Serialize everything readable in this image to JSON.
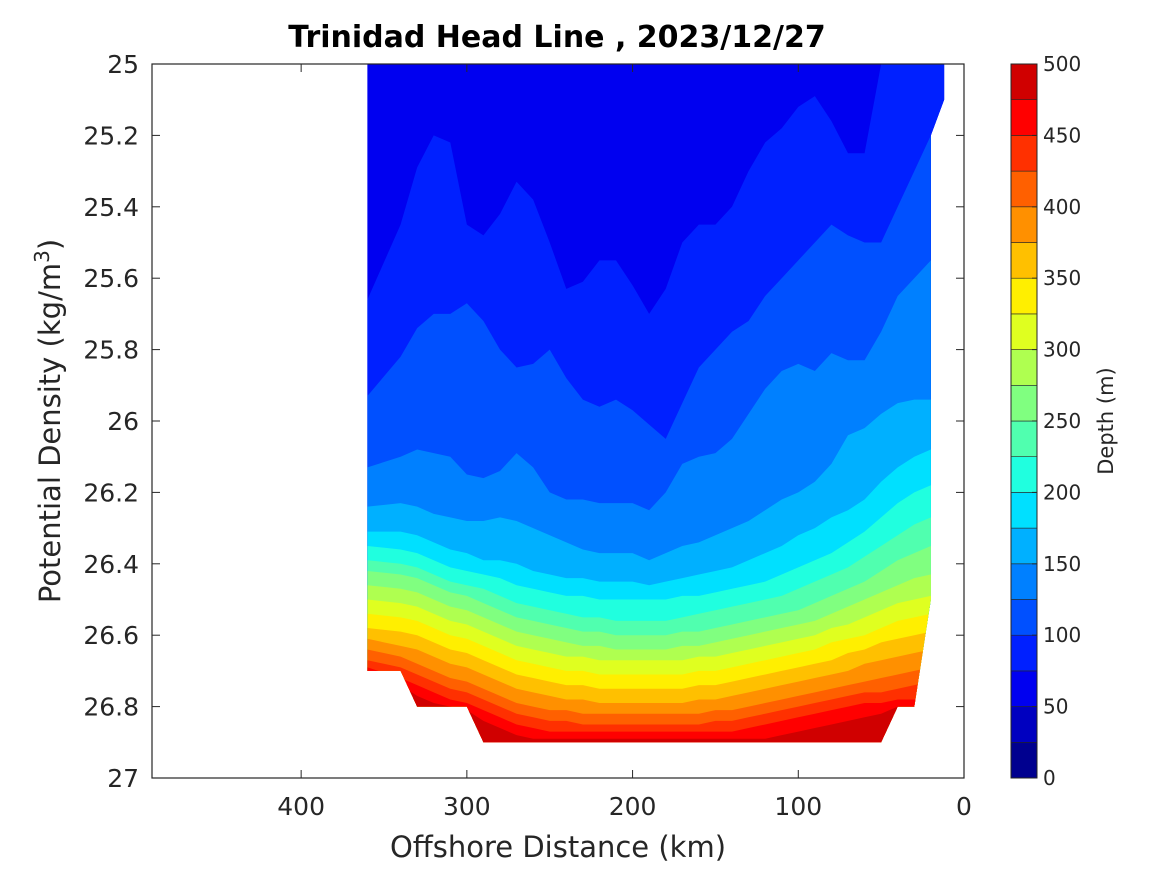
{
  "chart_data": {
    "type": "contourf",
    "title": "Trinidad Head Line , 2023/12/27",
    "xlabel": "Offshore Distance (km)",
    "ylabel_main": "Potential Density (kg/m",
    "ylabel_sup": "3",
    "ylabel_close": ")",
    "xlim": [
      490,
      0
    ],
    "ylim": [
      25,
      27
    ],
    "xdir": "reverse",
    "ydir": "reverse",
    "xticks": [
      400,
      300,
      200,
      100,
      0
    ],
    "xtick_labels": [
      "400",
      "300",
      "200",
      "100",
      "0"
    ],
    "yticks": [
      25,
      25.2,
      25.4,
      25.6,
      25.8,
      26,
      26.2,
      26.4,
      26.6,
      26.8,
      27
    ],
    "ytick_labels": [
      "25",
      "25.2",
      "25.4",
      "25.6",
      "25.8",
      "26",
      "26.2",
      "26.4",
      "26.6",
      "26.8",
      "27"
    ],
    "colorbar": {
      "label": "Depth (m)",
      "range": [
        0,
        500
      ],
      "step": 25,
      "ticks": [
        0,
        50,
        100,
        150,
        200,
        250,
        300,
        350,
        400,
        450,
        500
      ],
      "tick_labels": [
        "0",
        "50",
        "100",
        "150",
        "200",
        "250",
        "300",
        "350",
        "400",
        "450",
        "500"
      ],
      "colors": [
        "#00008F",
        "#0000C0",
        "#0000F0",
        "#0020FF",
        "#0050FF",
        "#0080FF",
        "#00B0FF",
        "#00E0FF",
        "#20FFDF",
        "#50FFAF",
        "#80FF80",
        "#AFFF50",
        "#DFFF20",
        "#FFEF00",
        "#FFC000",
        "#FF9000",
        "#FF6000",
        "#FF3000",
        "#FF0000",
        "#D00000"
      ]
    },
    "section_x": [
      360,
      340,
      330,
      320,
      310,
      300,
      290,
      280,
      270,
      260,
      250,
      240,
      230,
      220,
      210,
      200,
      190,
      180,
      170,
      160,
      150,
      140,
      130,
      120,
      110,
      100,
      90,
      80,
      70,
      60,
      50,
      40,
      30,
      20
    ],
    "bottom_density": [
      26.7,
      26.7,
      26.8,
      26.8,
      26.8,
      26.8,
      26.9,
      26.9,
      26.9,
      26.9,
      26.9,
      26.9,
      26.9,
      26.9,
      26.9,
      26.9,
      26.9,
      26.9,
      26.9,
      26.9,
      26.9,
      26.9,
      26.9,
      26.9,
      26.9,
      26.9,
      26.9,
      26.9,
      26.9,
      26.9,
      26.9,
      26.8,
      26.8,
      26.5
    ],
    "isopycnal_depth_m": {
      "50": [
        25.0,
        25.0,
        25.0,
        25.0,
        25.0,
        25.0,
        25.0,
        25.0,
        25.0,
        25.0,
        25.0,
        25.0,
        25.0,
        25.0,
        25.0,
        25.0,
        25.0,
        25.0,
        25.0,
        25.0,
        25.0,
        25.0,
        25.0,
        25.0,
        25.0,
        25.0,
        25.0,
        25.0,
        25.0,
        25.0,
        25.0,
        25.0,
        25.0,
        25.0
      ],
      "75": [
        25.66,
        25.45,
        25.29,
        25.2,
        25.22,
        25.45,
        25.48,
        25.42,
        25.33,
        25.38,
        25.5,
        25.63,
        25.61,
        25.55,
        25.55,
        25.62,
        25.7,
        25.63,
        25.5,
        25.45,
        25.45,
        25.4,
        25.3,
        25.22,
        25.18,
        25.12,
        25.09,
        25.16,
        25.25,
        25.25,
        25.0,
        25.0,
        25.0,
        25.0
      ],
      "100": [
        25.93,
        25.82,
        25.74,
        25.7,
        25.7,
        25.67,
        25.72,
        25.8,
        25.85,
        25.84,
        25.8,
        25.88,
        25.94,
        25.96,
        25.94,
        25.97,
        26.01,
        26.05,
        25.95,
        25.85,
        25.8,
        25.75,
        25.72,
        25.65,
        25.6,
        25.55,
        25.5,
        25.45,
        25.48,
        25.5,
        25.5,
        25.4,
        25.3,
        25.2
      ],
      "125": [
        26.13,
        26.1,
        26.08,
        26.09,
        26.1,
        26.15,
        26.16,
        26.14,
        26.09,
        26.13,
        26.2,
        26.22,
        26.22,
        26.23,
        26.23,
        26.23,
        26.25,
        26.2,
        26.12,
        26.1,
        26.09,
        26.05,
        25.98,
        25.91,
        25.86,
        25.84,
        25.86,
        25.81,
        25.83,
        25.83,
        25.75,
        25.65,
        25.6,
        25.55
      ],
      "150": [
        26.24,
        26.23,
        26.24,
        26.26,
        26.27,
        26.28,
        26.28,
        26.27,
        26.28,
        26.3,
        26.32,
        26.34,
        26.36,
        26.37,
        26.37,
        26.37,
        26.39,
        26.37,
        26.35,
        26.34,
        26.32,
        26.3,
        26.28,
        26.25,
        26.22,
        26.2,
        26.17,
        26.12,
        26.04,
        26.02,
        25.98,
        25.95,
        25.94,
        25.94
      ],
      "175": [
        26.31,
        26.31,
        26.32,
        26.34,
        26.36,
        26.37,
        26.39,
        26.39,
        26.4,
        26.42,
        26.43,
        26.44,
        26.44,
        26.45,
        26.45,
        26.45,
        26.46,
        26.45,
        26.44,
        26.43,
        26.42,
        26.41,
        26.39,
        26.37,
        26.35,
        26.32,
        26.3,
        26.27,
        26.25,
        26.22,
        26.17,
        26.13,
        26.1,
        26.08
      ],
      "200": [
        26.35,
        26.36,
        26.37,
        26.39,
        26.41,
        26.42,
        26.43,
        26.44,
        26.46,
        26.47,
        26.48,
        26.49,
        26.49,
        26.5,
        26.5,
        26.5,
        26.5,
        26.5,
        26.49,
        26.49,
        26.48,
        26.47,
        26.46,
        26.45,
        26.43,
        26.41,
        26.39,
        26.37,
        26.34,
        26.31,
        26.27,
        26.23,
        26.2,
        26.18
      ],
      "225": [
        26.39,
        26.4,
        26.41,
        26.43,
        26.45,
        26.46,
        26.47,
        26.49,
        26.51,
        26.52,
        26.53,
        26.54,
        26.55,
        26.55,
        26.56,
        26.56,
        26.56,
        26.56,
        26.55,
        26.54,
        26.53,
        26.52,
        26.51,
        26.5,
        26.49,
        26.47,
        26.45,
        26.43,
        26.41,
        26.38,
        26.35,
        26.32,
        26.29,
        26.27
      ],
      "250": [
        26.42,
        26.43,
        26.44,
        26.46,
        26.48,
        26.49,
        26.51,
        26.53,
        26.55,
        26.56,
        26.57,
        26.58,
        26.59,
        26.59,
        26.6,
        26.6,
        26.6,
        26.6,
        26.59,
        26.59,
        26.58,
        26.57,
        26.56,
        26.55,
        26.54,
        26.53,
        26.51,
        26.49,
        26.47,
        26.45,
        26.42,
        26.39,
        26.37,
        26.35
      ],
      "275": [
        26.46,
        26.47,
        26.48,
        26.5,
        26.52,
        26.53,
        26.55,
        26.57,
        26.59,
        26.6,
        26.61,
        26.62,
        26.63,
        26.63,
        26.64,
        26.64,
        26.64,
        26.64,
        26.63,
        26.63,
        26.62,
        26.61,
        26.6,
        26.59,
        26.58,
        26.57,
        26.56,
        26.54,
        26.52,
        26.5,
        26.48,
        26.46,
        26.44,
        26.43
      ],
      "300": [
        26.5,
        26.51,
        26.52,
        26.54,
        26.56,
        26.57,
        26.59,
        26.61,
        26.63,
        26.64,
        26.65,
        26.66,
        26.66,
        26.67,
        26.67,
        26.67,
        26.67,
        26.67,
        26.67,
        26.66,
        26.66,
        26.65,
        26.64,
        26.63,
        26.62,
        26.61,
        26.6,
        26.58,
        26.57,
        26.55,
        26.53,
        26.51,
        26.5,
        26.49
      ],
      "325": [
        26.54,
        26.55,
        26.56,
        26.58,
        26.6,
        26.61,
        26.63,
        26.65,
        26.67,
        26.68,
        26.69,
        26.7,
        26.7,
        26.71,
        26.71,
        26.71,
        26.71,
        26.71,
        26.71,
        26.7,
        26.7,
        26.69,
        26.68,
        26.67,
        26.66,
        26.65,
        26.64,
        26.62,
        26.61,
        26.6,
        26.58,
        26.56,
        26.55,
        26.54
      ],
      "350": [
        26.58,
        26.59,
        26.6,
        26.62,
        26.64,
        26.65,
        26.67,
        26.69,
        26.71,
        26.72,
        26.73,
        26.74,
        26.74,
        26.75,
        26.75,
        26.75,
        26.75,
        26.75,
        26.75,
        26.74,
        26.74,
        26.73,
        26.72,
        26.71,
        26.7,
        26.69,
        26.68,
        26.67,
        26.65,
        26.64,
        26.62,
        26.61,
        26.6,
        26.59
      ],
      "375": [
        26.61,
        26.63,
        26.64,
        26.66,
        26.68,
        26.69,
        26.71,
        26.73,
        26.75,
        26.76,
        26.77,
        26.78,
        26.78,
        26.79,
        26.79,
        26.79,
        26.79,
        26.79,
        26.79,
        26.78,
        26.78,
        26.77,
        26.76,
        26.75,
        26.74,
        26.73,
        26.72,
        26.71,
        26.7,
        26.68,
        26.67,
        26.66,
        26.65,
        26.64
      ],
      "400": [
        26.64,
        26.66,
        26.68,
        26.7,
        26.72,
        26.73,
        26.75,
        26.77,
        26.79,
        26.8,
        26.81,
        26.81,
        26.82,
        26.82,
        26.82,
        26.82,
        26.82,
        26.82,
        26.82,
        26.82,
        26.81,
        26.81,
        26.8,
        26.79,
        26.78,
        26.77,
        26.76,
        26.75,
        26.74,
        26.73,
        26.72,
        26.71,
        26.7,
        26.69
      ],
      "425": [
        26.67,
        26.69,
        26.71,
        26.73,
        26.75,
        26.76,
        26.78,
        26.8,
        26.82,
        26.83,
        26.84,
        26.84,
        26.85,
        26.85,
        26.85,
        26.85,
        26.85,
        26.85,
        26.85,
        26.85,
        26.84,
        26.84,
        26.83,
        26.82,
        26.81,
        26.8,
        26.79,
        26.78,
        26.77,
        26.76,
        26.76,
        26.75,
        26.74,
        26.73
      ],
      "450": [
        26.69,
        26.72,
        26.74,
        26.76,
        26.78,
        26.79,
        26.81,
        26.83,
        26.85,
        26.86,
        26.87,
        26.87,
        26.87,
        26.87,
        26.87,
        26.87,
        26.87,
        26.87,
        26.87,
        26.87,
        26.87,
        26.87,
        26.86,
        26.85,
        26.84,
        26.83,
        26.82,
        26.81,
        26.8,
        26.79,
        26.79,
        26.78,
        26.78,
        26.77
      ],
      "475": [
        26.7,
        26.74,
        26.77,
        26.79,
        26.8,
        26.81,
        26.84,
        26.86,
        26.88,
        26.89,
        26.89,
        26.89,
        26.89,
        26.89,
        26.89,
        26.89,
        26.89,
        26.89,
        26.89,
        26.89,
        26.89,
        26.89,
        26.89,
        26.89,
        26.88,
        26.87,
        26.86,
        26.85,
        26.84,
        26.83,
        26.82,
        26.8,
        26.8,
        26.8
      ]
    }
  }
}
